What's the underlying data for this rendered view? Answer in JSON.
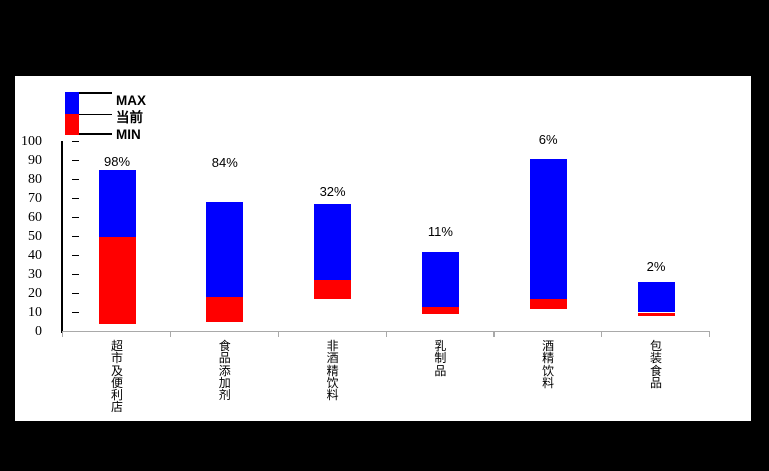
{
  "chart_data": {
    "type": "bar",
    "subtype": "floating-range-bars-with-current-marker",
    "title": "",
    "xlabel": "",
    "ylabel": "",
    "ylim": [
      0,
      100
    ],
    "yticks": [
      0,
      10,
      20,
      30,
      40,
      50,
      60,
      70,
      80,
      90,
      100
    ],
    "grid": "off",
    "legend_position": "top-left",
    "legend_labels": {
      "max": "MAX",
      "current": "当前",
      "min": "MIN"
    },
    "categories": [
      "超市及便利店",
      "食品添加剂",
      "非酒精饮料",
      "乳制品",
      "酒精饮料",
      "包装食品"
    ],
    "series": [
      {
        "name": "MIN",
        "values": [
          4,
          5,
          17,
          9,
          12,
          8
        ]
      },
      {
        "name": "当前",
        "values": [
          50,
          18,
          27,
          13,
          17,
          10
        ]
      },
      {
        "name": "MAX",
        "values": [
          85,
          68,
          67,
          42,
          91,
          26
        ]
      }
    ],
    "bar_labels": [
      "98%",
      "84%",
      "32%",
      "11%",
      "6%",
      "2%"
    ],
    "colors": {
      "max_segment": "#0000ff",
      "current_segment": "#ff0000",
      "value_axis": "#000000",
      "category_axis": "#a9a9a9",
      "text": "#000000",
      "plot_background": "#ffffff",
      "page_background": "#000000"
    }
  }
}
